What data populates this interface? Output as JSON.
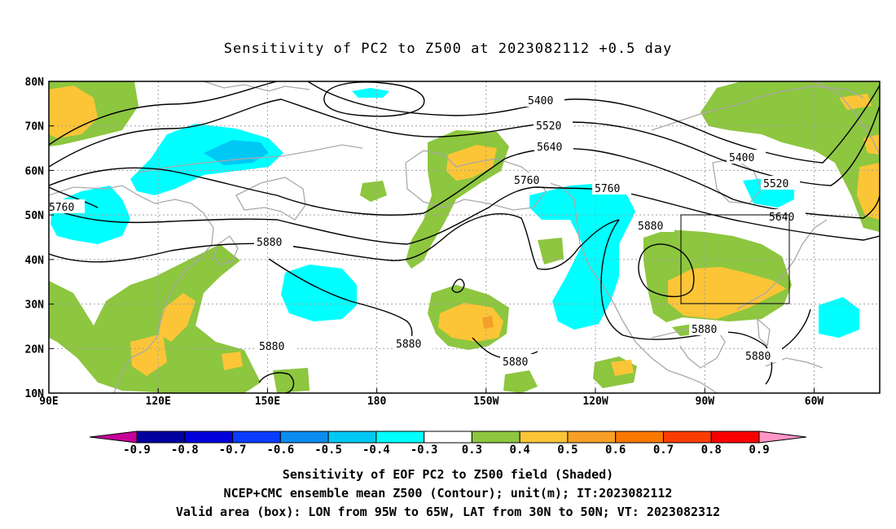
{
  "title": "Sensitivity of PC2 to Z500 at 2023082112 +0.5 day",
  "map": {
    "lat_labels": [
      "80N",
      "70N",
      "60N",
      "50N",
      "40N",
      "30N",
      "20N",
      "10N"
    ],
    "lon_labels": [
      "90E",
      "120E",
      "150E",
      "180",
      "150W",
      "120W",
      "90W",
      "60W"
    ],
    "valid_box": {
      "lon_min": -95,
      "lon_max": -65,
      "lat_min": 30,
      "lat_max": 50
    },
    "contour_labels": [
      "5400",
      "5520",
      "5640",
      "5760",
      "5400",
      "5520",
      "5640",
      "5760",
      "5880",
      "5760",
      "5880",
      "5880",
      "5880",
      "5880",
      "5880"
    ],
    "shading_colors": {
      "pos_0.3": "#8dc63f",
      "pos_0.4": "#fcc537",
      "pos_0.5": "#f7a025",
      "neg_0.3": "#00ffff",
      "neg_0.4": "#00c8f5",
      "coast": "#a9a9a9",
      "grid": "#a0a0a0"
    }
  },
  "colorbar": {
    "labels": [
      "-0.9",
      "-0.8",
      "-0.7",
      "-0.6",
      "-0.5",
      "-0.4",
      "-0.3",
      "0.3",
      "0.4",
      "0.5",
      "0.6",
      "0.7",
      "0.8",
      "0.9"
    ],
    "colors": [
      "#c8009a",
      "#0000a0",
      "#0000dc",
      "#0a3cff",
      "#0a8cf0",
      "#00c8f5",
      "#00ffff",
      "#ffffff",
      "#8dc63f",
      "#fcc537",
      "#f7a025",
      "#fa7800",
      "#fa3c00",
      "#fa0000",
      "#ff96c8"
    ]
  },
  "captions": {
    "line1": "Sensitivity of EOF PC2 to Z500 field (Shaded)",
    "line2": "NCEP+CMC ensemble mean Z500 (Contour); unit(m); IT:2023082112",
    "line3": "Valid area (box): LON from 95W to 65W, LAT from 30N to 50N; VT: 2023082312"
  }
}
